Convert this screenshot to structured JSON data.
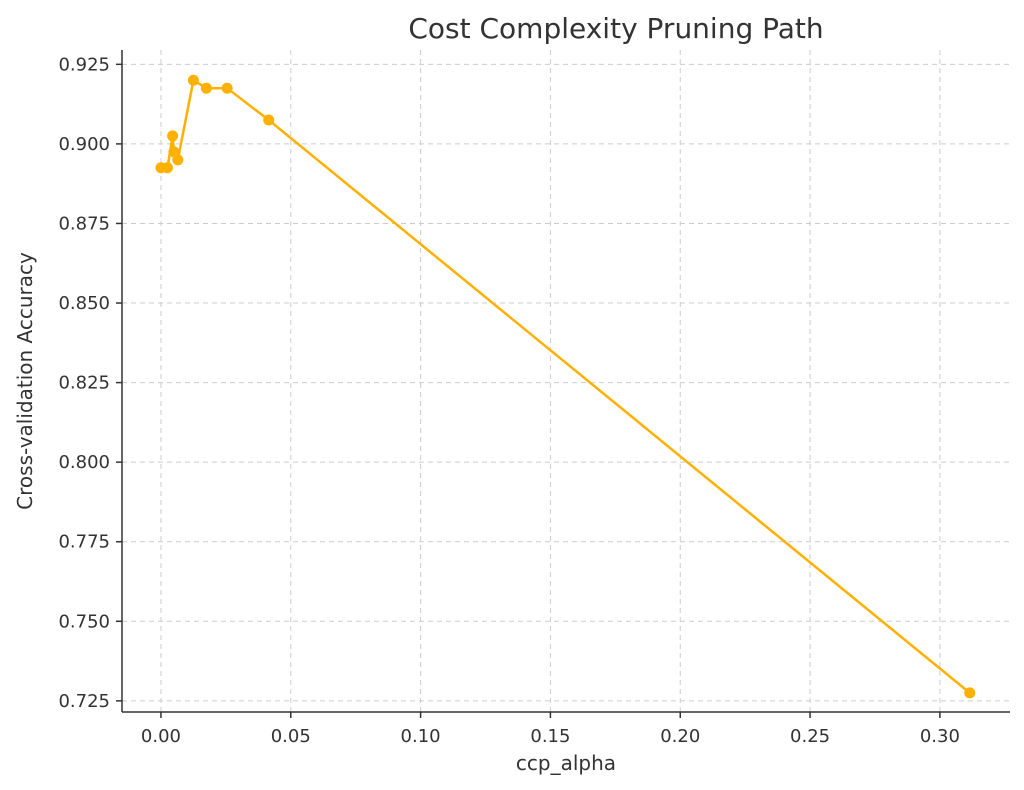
{
  "chart_data": {
    "type": "line",
    "title": "Cost Complexity Pruning Path",
    "xlabel": "ccp_alpha",
    "ylabel": "Cross-validation Accuracy",
    "xlim": [
      -0.015,
      0.327
    ],
    "ylim": [
      0.7215,
      0.9295
    ],
    "xticks": [
      0.0,
      0.05,
      0.1,
      0.15,
      0.2,
      0.25,
      0.3
    ],
    "xtick_labels": [
      "0.00",
      "0.05",
      "0.10",
      "0.15",
      "0.20",
      "0.25",
      "0.30"
    ],
    "yticks": [
      0.725,
      0.75,
      0.775,
      0.8,
      0.825,
      0.85,
      0.875,
      0.9,
      0.925
    ],
    "ytick_labels": [
      "0.725",
      "0.750",
      "0.775",
      "0.800",
      "0.825",
      "0.850",
      "0.875",
      "0.900",
      "0.925"
    ],
    "grid": true,
    "color": "#FFB000",
    "series": [
      {
        "x": [
          0.0,
          0.0025,
          0.0045,
          0.005,
          0.0065,
          0.0125,
          0.0175,
          0.0255,
          0.0415,
          0.3115
        ],
        "y": [
          0.8925,
          0.8925,
          0.9025,
          0.8975,
          0.895,
          0.92,
          0.9175,
          0.9175,
          0.9075,
          0.7275
        ]
      }
    ]
  }
}
